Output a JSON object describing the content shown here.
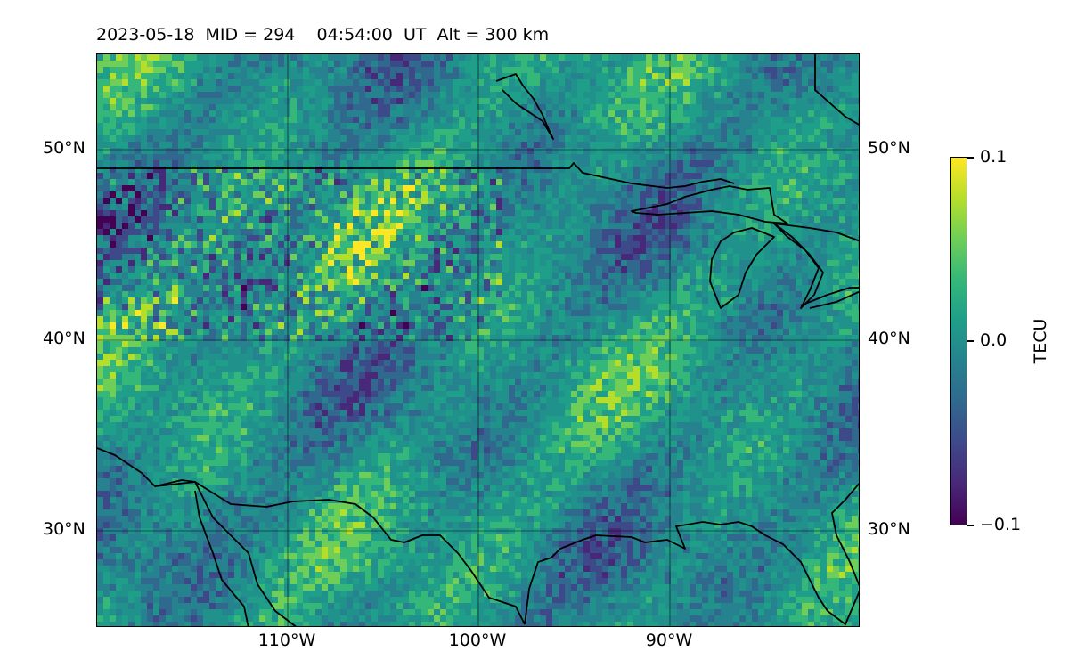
{
  "title": "2023-05-18  MID = 294    04:54:00  UT  Alt = 300 km",
  "map": {
    "lat_labels": [
      "50°N",
      "40°N",
      "30°N"
    ],
    "lon_labels": [
      "110°W",
      "100°W",
      "90°W"
    ],
    "extent": {
      "lon_min": -120,
      "lon_max": -80,
      "lat_min": 25,
      "lat_max": 55
    },
    "gridlines": true,
    "field": "TEC perturbation",
    "colormap": "viridis"
  },
  "colorbar": {
    "label": "TECU",
    "ticks": [
      "0.1",
      "0.0",
      "−0.1"
    ],
    "vmin": -0.1,
    "vmax": 0.1
  },
  "colors": {
    "low": "#440154",
    "mid": "#21918c",
    "high": "#fde725"
  }
}
